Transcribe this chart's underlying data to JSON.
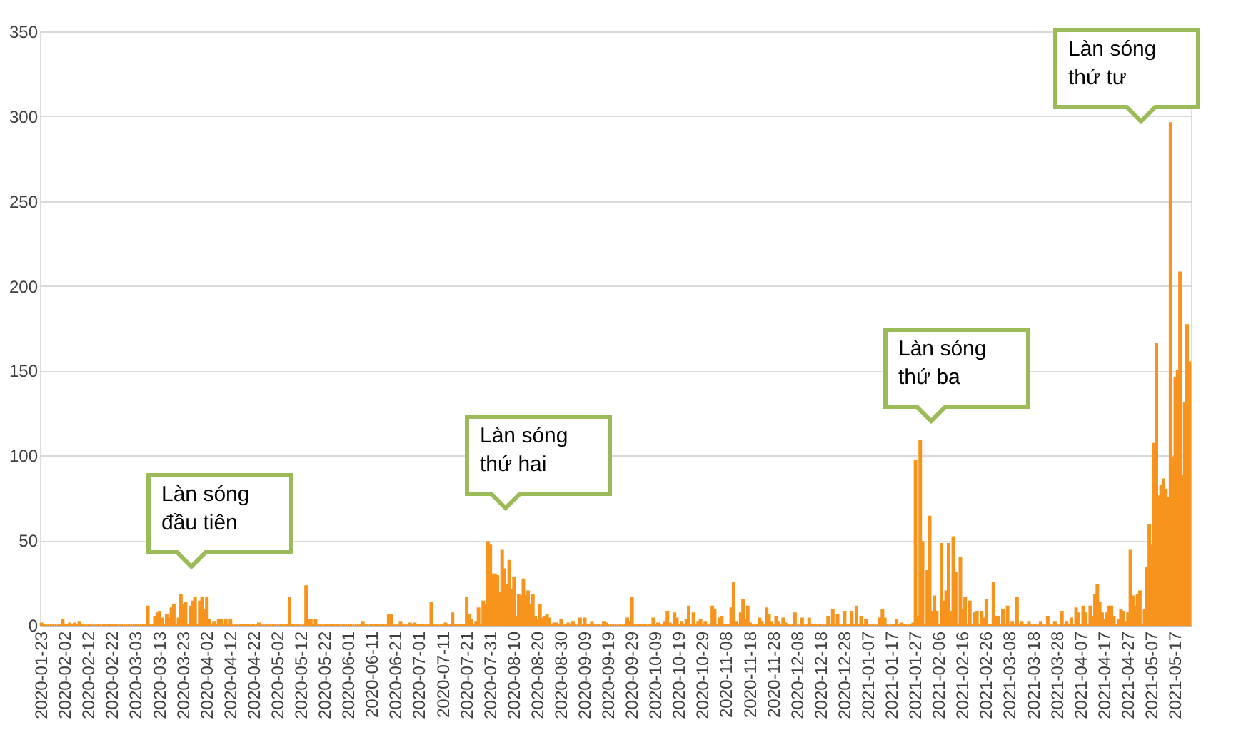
{
  "chart_data": {
    "type": "bar",
    "color": "#f7941d",
    "ylim": [
      0,
      350
    ],
    "yticks": [
      0,
      50,
      100,
      150,
      200,
      250,
      300,
      350
    ],
    "grid": "y",
    "categories": [
      "2020-01-23",
      null,
      null,
      null,
      null,
      null,
      null,
      null,
      null,
      null,
      "2020-02-02",
      null,
      null,
      null,
      null,
      null,
      null,
      null,
      null,
      null,
      "2020-02-12",
      null,
      null,
      null,
      null,
      null,
      null,
      null,
      null,
      null,
      "2020-02-22",
      null,
      null,
      null,
      null,
      null,
      null,
      null,
      null,
      null,
      "2020-03-03",
      null,
      null,
      null,
      null,
      null,
      null,
      null,
      null,
      null,
      "2020-03-13",
      null,
      null,
      null,
      null,
      null,
      null,
      null,
      null,
      null,
      "2020-03-23",
      null,
      null,
      null,
      null,
      null,
      null,
      null,
      null,
      null,
      "2020-04-02",
      null,
      null,
      null,
      null,
      null,
      null,
      null,
      null,
      null,
      "2020-04-12",
      null,
      null,
      null,
      null,
      null,
      null,
      null,
      null,
      null,
      "2020-04-22",
      null,
      null,
      null,
      null,
      null,
      null,
      null,
      null,
      null,
      "2020-05-02",
      null,
      null,
      null,
      null,
      null,
      null,
      null,
      null,
      null,
      "2020-05-12",
      null,
      null,
      null,
      null,
      null,
      null,
      null,
      null,
      null,
      "2020-05-22",
      null,
      null,
      null,
      null,
      null,
      null,
      null,
      null,
      null,
      "2020-06-01",
      null,
      null,
      null,
      null,
      null,
      null,
      null,
      null,
      null,
      "2020-06-11",
      null,
      null,
      null,
      null,
      null,
      null,
      null,
      null,
      null,
      "2020-06-21",
      null,
      null,
      null,
      null,
      null,
      null,
      null,
      null,
      null,
      "2020-07-01",
      null,
      null,
      null,
      null,
      null,
      null,
      null,
      null,
      null,
      "2020-07-11",
      null,
      null,
      null,
      null,
      null,
      null,
      null,
      null,
      null,
      "2020-07-21",
      null,
      null,
      null,
      null,
      null,
      null,
      null,
      null,
      null,
      "2020-07-31",
      null,
      null,
      null,
      null,
      null,
      null,
      null,
      null,
      null,
      "2020-08-10",
      null,
      null,
      null,
      null,
      null,
      null,
      null,
      null,
      null,
      "2020-08-20",
      null,
      null,
      null,
      null,
      null,
      null,
      null,
      null,
      null,
      "2020-08-30",
      null,
      null,
      null,
      null,
      null,
      null,
      null,
      null,
      null,
      "2020-09-09",
      null,
      null,
      null,
      null,
      null,
      null,
      null,
      null,
      null,
      "2020-09-19",
      null,
      null,
      null,
      null,
      null,
      null,
      null,
      null,
      null,
      "2020-09-29",
      null,
      null,
      null,
      null,
      null,
      null,
      null,
      null,
      null,
      "2020-10-09",
      null,
      null,
      null,
      null,
      null,
      null,
      null,
      null,
      null,
      "2020-10-19",
      null,
      null,
      null,
      null,
      null,
      null,
      null,
      null,
      null,
      "2020-10-29",
      null,
      null,
      null,
      null,
      null,
      null,
      null,
      null,
      null,
      "2020-11-08",
      null,
      null,
      null,
      null,
      null,
      null,
      null,
      null,
      null,
      "2020-11-18",
      null,
      null,
      null,
      null,
      null,
      null,
      null,
      null,
      null,
      "2020-11-28",
      null,
      null,
      null,
      null,
      null,
      null,
      null,
      null,
      null,
      "2020-12-08",
      null,
      null,
      null,
      null,
      null,
      null,
      null,
      null,
      null,
      "2020-12-18",
      null,
      null,
      null,
      null,
      null,
      null,
      null,
      null,
      null,
      "2020-12-28",
      null,
      null,
      null,
      null,
      null,
      null,
      null,
      null,
      null,
      "2021-01-07",
      null,
      null,
      null,
      null,
      null,
      null,
      null,
      null,
      null,
      "2021-01-17",
      null,
      null,
      null,
      null,
      null,
      null,
      null,
      null,
      null,
      "2021-01-27",
      null,
      null,
      null,
      null,
      null,
      null,
      null,
      null,
      null,
      "2021-02-06",
      null,
      null,
      null,
      null,
      null,
      null,
      null,
      null,
      null,
      "2021-02-16",
      null,
      null,
      null,
      null,
      null,
      null,
      null,
      null,
      null,
      "2021-02-26",
      null,
      null,
      null,
      null,
      null,
      null,
      null,
      null,
      null,
      "2021-03-08",
      null,
      null,
      null,
      null,
      null,
      null,
      null,
      null,
      null,
      "2021-03-18",
      null,
      null,
      null,
      null,
      null,
      null,
      null,
      null,
      null,
      "2021-03-28",
      null,
      null,
      null,
      null,
      null,
      null,
      null,
      null,
      null,
      "2021-04-07",
      null,
      null,
      null,
      null,
      null,
      null,
      null,
      null,
      null,
      "2021-04-17",
      null,
      null,
      null,
      null,
      null,
      null,
      null,
      null,
      null,
      "2021-04-27",
      null,
      null,
      null,
      null,
      null,
      null,
      null,
      null,
      null,
      "2021-05-07",
      null,
      null,
      null,
      null,
      null,
      null,
      null,
      null,
      null,
      "2021-05-17",
      null,
      null,
      null,
      null,
      null,
      null
    ],
    "values": [
      1,
      0,
      0,
      0,
      0,
      0,
      0,
      0,
      0,
      3,
      0,
      0,
      1,
      0,
      1,
      0,
      2,
      0,
      0,
      0,
      0,
      0,
      0,
      0,
      0,
      0,
      0,
      0,
      0,
      0,
      0,
      0,
      0,
      0,
      0,
      0,
      0,
      0,
      0,
      0,
      0,
      0,
      0,
      0,
      0,
      11,
      0,
      0,
      5,
      7,
      8,
      4,
      0,
      6,
      4,
      10,
      12,
      0,
      4,
      18,
      12,
      13,
      0,
      11,
      14,
      16,
      0,
      14,
      16,
      9,
      16,
      3,
      0,
      2,
      0,
      3,
      3,
      0,
      3,
      0,
      3,
      0,
      0,
      0,
      0,
      0,
      0,
      0,
      0,
      0,
      0,
      0,
      1,
      0,
      0,
      0,
      0,
      0,
      0,
      0,
      0,
      0,
      0,
      0,
      0,
      16,
      0,
      0,
      0,
      0,
      0,
      0,
      23,
      3,
      3,
      0,
      3,
      0,
      0,
      0,
      0,
      0,
      0,
      0,
      0,
      0,
      0,
      0,
      0,
      0,
      0,
      0,
      0,
      0,
      0,
      0,
      2,
      0,
      0,
      0,
      0,
      0,
      0,
      0,
      0,
      0,
      0,
      6,
      6,
      0,
      0,
      0,
      2,
      0,
      0,
      0,
      1,
      0,
      1,
      0,
      0,
      0,
      0,
      0,
      0,
      13,
      0,
      0,
      0,
      0,
      0,
      1,
      0,
      0,
      7,
      0,
      0,
      0,
      0,
      0,
      16,
      6,
      3,
      0,
      2,
      10,
      0,
      14,
      12,
      49,
      47,
      30,
      30,
      29,
      19,
      44,
      33,
      24,
      38,
      21,
      28,
      5,
      18,
      17,
      27,
      17,
      20,
      12,
      18,
      5,
      3,
      12,
      4,
      5,
      6,
      4,
      0,
      1,
      1,
      0,
      3,
      0,
      0,
      1,
      0,
      2,
      0,
      0,
      4,
      0,
      4,
      0,
      0,
      2,
      0,
      0,
      0,
      0,
      2,
      1,
      0,
      0,
      0,
      0,
      0,
      0,
      0,
      0,
      4,
      2,
      16,
      0,
      0,
      0,
      0,
      0,
      0,
      0,
      0,
      4,
      0,
      1,
      0,
      0,
      2,
      8,
      1,
      0,
      7,
      4,
      0,
      2,
      0,
      3,
      11,
      0,
      7,
      0,
      2,
      3,
      0,
      2,
      0,
      0,
      11,
      9,
      0,
      4,
      5,
      0,
      0,
      0,
      10,
      25,
      2,
      0,
      7,
      15,
      3,
      11,
      1,
      0,
      0,
      0,
      4,
      2,
      0,
      10,
      6,
      2,
      0,
      5,
      2,
      0,
      4,
      1,
      0,
      0,
      0,
      7,
      0,
      0,
      4,
      0,
      0,
      4,
      0,
      0,
      0,
      0,
      0,
      0,
      0,
      5,
      0,
      9,
      0,
      6,
      0,
      0,
      8,
      0,
      0,
      8,
      0,
      11,
      0,
      5,
      0,
      3,
      0,
      0,
      0,
      0,
      0,
      4,
      9,
      4,
      0,
      0,
      0,
      0,
      3,
      0,
      1,
      0,
      0,
      0,
      0,
      1,
      97,
      5,
      109,
      49,
      0,
      32,
      64,
      8,
      17,
      8,
      0,
      48,
      14,
      20,
      48,
      8,
      52,
      31,
      0,
      40,
      9,
      16,
      0,
      14,
      0,
      7,
      8,
      0,
      8,
      4,
      15,
      0,
      0,
      25,
      5,
      5,
      0,
      9,
      0,
      11,
      0,
      2,
      0,
      16,
      0,
      2,
      0,
      0,
      2,
      0,
      0,
      0,
      0,
      2,
      0,
      0,
      5,
      0,
      0,
      2,
      0,
      0,
      8,
      0,
      2,
      0,
      4,
      0,
      10,
      7,
      0,
      11,
      7,
      0,
      11,
      5,
      18,
      24,
      13,
      7,
      3,
      7,
      11,
      11,
      5,
      0,
      3,
      9,
      8,
      2,
      7,
      44,
      17,
      11,
      18,
      20,
      0,
      9,
      34,
      59,
      47,
      107,
      166,
      76,
      82,
      86,
      80,
      75,
      296,
      99,
      146,
      150,
      208,
      88,
      131,
      177,
      155
    ],
    "annotations": [
      "Làn sóng\nđầu tiên",
      "Làn sóng\nthứ hai",
      "Làn sóng\nthứ ba",
      "Làn sóng\nthứ tư"
    ]
  }
}
